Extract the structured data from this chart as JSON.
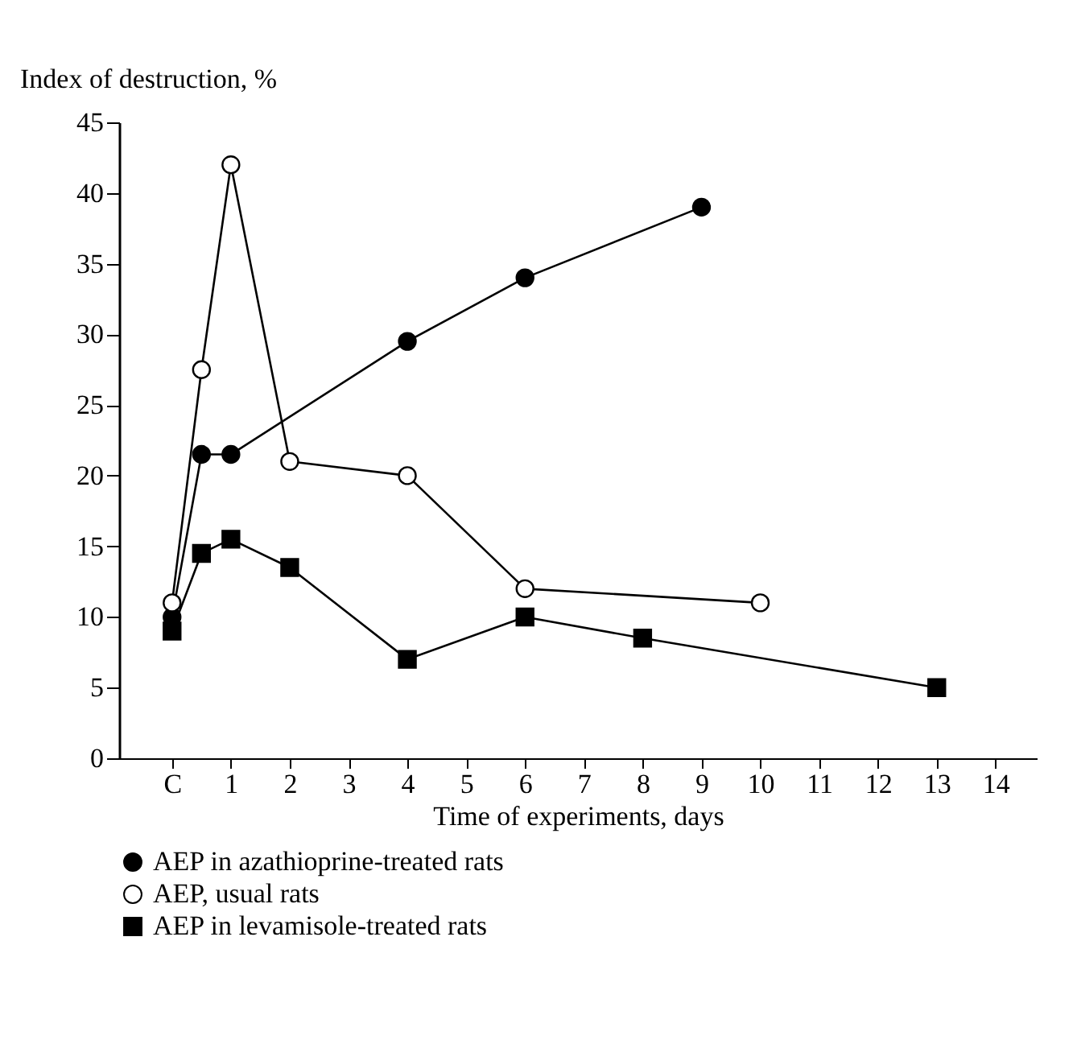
{
  "chart_data": {
    "type": "line",
    "xlabel": "Time of experiments, days",
    "ylabel": "Index of destruction, %",
    "xlim": [
      -0.9,
      14.7
    ],
    "xticks": [
      {
        "value": 0,
        "label": "C"
      },
      1,
      2,
      3,
      4,
      5,
      6,
      7,
      8,
      9,
      10,
      11,
      12,
      13,
      14
    ],
    "ylim": [
      0,
      45
    ],
    "yticks": [
      0,
      5,
      10,
      15,
      20,
      25,
      30,
      35,
      40,
      45
    ],
    "grid": false,
    "legend": "bottom",
    "series": [
      {
        "name": "AEP in azathioprine-treated rats",
        "color": "#000000",
        "marker": "circle",
        "x": [
          0,
          0.5,
          1,
          4,
          6,
          9
        ],
        "values": [
          10,
          21.5,
          21.5,
          29.5,
          34,
          39
        ]
      },
      {
        "name": "AEP, usual rats",
        "color": "#ffffff",
        "marker": "circle",
        "x": [
          0,
          0.5,
          1,
          2,
          4,
          6,
          10
        ],
        "values": [
          11,
          27.5,
          42,
          21,
          20,
          12,
          11
        ]
      },
      {
        "name": "AEP in levamisole-treated rats",
        "color": "#000000",
        "marker": "square",
        "x": [
          0,
          0.5,
          1,
          2,
          4,
          6,
          8,
          13
        ],
        "values": [
          9,
          14.5,
          15.5,
          13.5,
          7,
          10,
          8.5,
          5
        ]
      }
    ]
  }
}
